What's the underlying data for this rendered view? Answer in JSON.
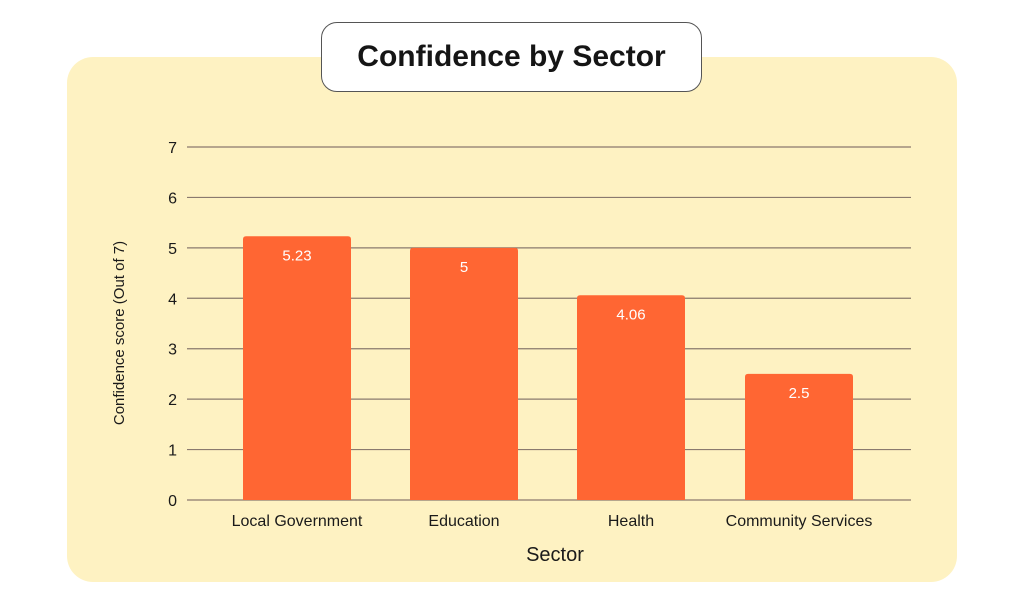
{
  "chart_data": {
    "type": "bar",
    "title": "Confidence by Sector",
    "xlabel": "Sector",
    "ylabel": "Confidence score (Out of 7)",
    "categories": [
      "Local Government",
      "Education",
      "Health",
      "Community Services"
    ],
    "values": [
      5.23,
      5,
      4.06,
      2.5
    ],
    "data_labels": [
      "5.23",
      "5",
      "4.06",
      "2.5"
    ],
    "yticks": [
      "0",
      "1",
      "2",
      "3",
      "4",
      "5",
      "6",
      "7"
    ],
    "ylim": [
      0,
      7
    ],
    "grid": true,
    "legend": "none"
  },
  "colors": {
    "bar": "#ff6633",
    "panel_background": "#fef2c2",
    "gridline": "#8a7a6e"
  }
}
